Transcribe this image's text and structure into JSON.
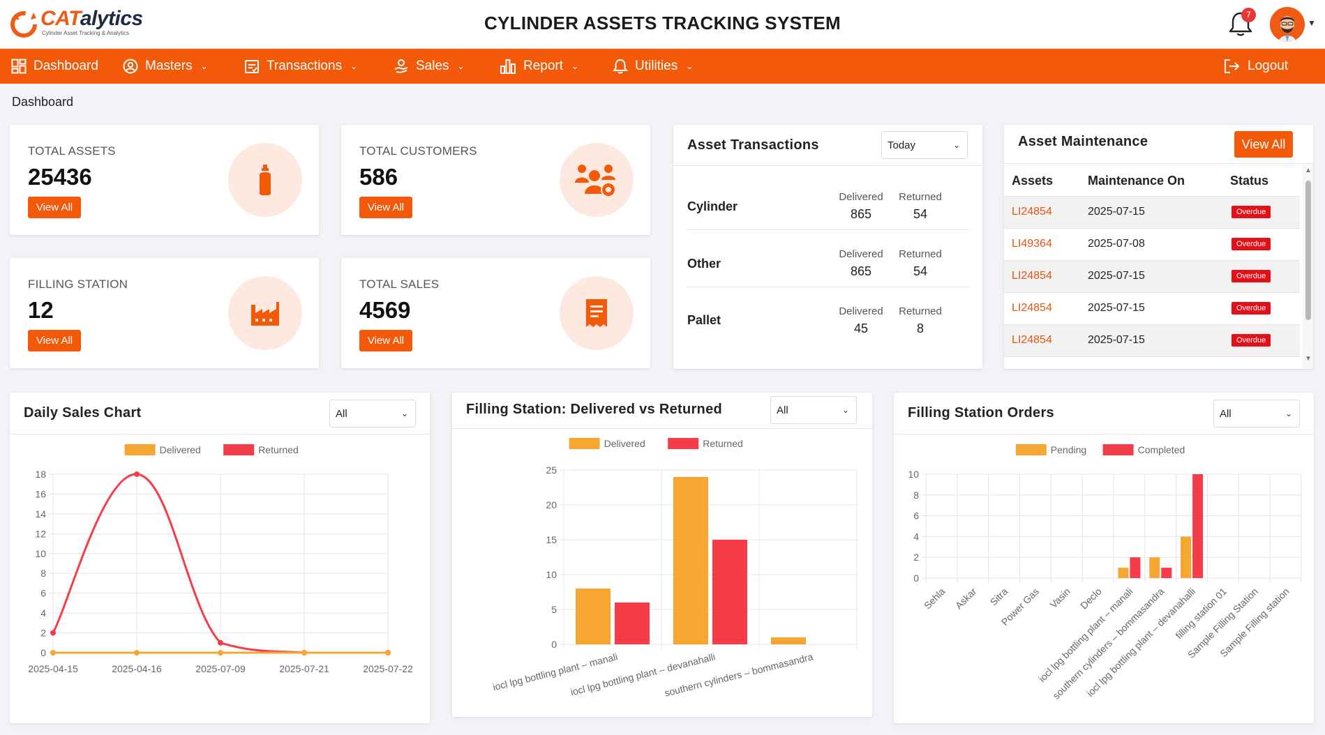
{
  "header": {
    "logo_word_a": "CAT",
    "logo_word_b": "alytics",
    "logo_tagline": "Cylinder Asset Tracking & Analytics",
    "title": "CYLINDER ASSETS TRACKING SYSTEM",
    "notification_count": "7"
  },
  "nav": {
    "items": [
      {
        "label": "Dashboard",
        "icon": "grid-icon"
      },
      {
        "label": "Masters",
        "icon": "user-circle-icon"
      },
      {
        "label": "Transactions",
        "icon": "clipboard-icon"
      },
      {
        "label": "Sales",
        "icon": "person-hand-icon"
      },
      {
        "label": "Report",
        "icon": "bar-chart-icon"
      },
      {
        "label": "Utilities",
        "icon": "bell-icon"
      }
    ],
    "logout": "Logout"
  },
  "breadcrumb": "Dashboard",
  "stats": [
    {
      "label": "TOTAL ASSETS",
      "value": "25436",
      "button": "View All",
      "icon": "cylinder-icon"
    },
    {
      "label": "TOTAL CUSTOMERS",
      "value": "586",
      "button": "View All",
      "icon": "users-gear-icon"
    },
    {
      "label": "FILLING STATION",
      "value": "12",
      "button": "View All",
      "icon": "factory-icon"
    },
    {
      "label": "TOTAL SALES",
      "value": "4569",
      "button": "View All",
      "icon": "receipt-icon"
    }
  ],
  "asset_transactions": {
    "title": "Asset Transactions",
    "filter": "Today",
    "delivered_label": "Delivered",
    "returned_label": "Returned",
    "rows": [
      {
        "name": "Cylinder",
        "delivered": "865",
        "returned": "54"
      },
      {
        "name": "Other",
        "delivered": "865",
        "returned": "54"
      },
      {
        "name": "Pallet",
        "delivered": "45",
        "returned": "8"
      }
    ]
  },
  "maintenance": {
    "title": "Asset Maintenance",
    "button": "View All",
    "columns": [
      "Assets",
      "Maintenance On",
      "Status"
    ],
    "rows": [
      {
        "asset": "LI24854",
        "date": "2025-07-15",
        "status": "Overdue"
      },
      {
        "asset": "LI49364",
        "date": "2025-07-08",
        "status": "Overdue"
      },
      {
        "asset": "LI24854",
        "date": "2025-07-15",
        "status": "Overdue"
      },
      {
        "asset": "LI24854",
        "date": "2025-07-15",
        "status": "Overdue"
      },
      {
        "asset": "LI24854",
        "date": "2025-07-15",
        "status": "Overdue"
      }
    ]
  },
  "colors": {
    "accent": "#f25a0a",
    "delivered": "#f6a732",
    "returned": "#f53c48",
    "overdue": "#e3101a"
  },
  "chart_data": [
    {
      "type": "line",
      "title": "Daily Sales Chart",
      "filter": "All",
      "categories": [
        "2025-04-15",
        "2025-04-16",
        "2025-07-09",
        "2025-07-21",
        "2025-07-22"
      ],
      "series": [
        {
          "name": "Delivered",
          "values": [
            0,
            0,
            0,
            0,
            0
          ]
        },
        {
          "name": "Returned",
          "values": [
            2,
            18,
            1,
            0,
            0
          ]
        }
      ],
      "ylim": [
        0,
        18
      ],
      "yticks": [
        0,
        2,
        4,
        6,
        8,
        10,
        12,
        14,
        16,
        18
      ],
      "legend": "top"
    },
    {
      "type": "bar",
      "title": "Filling Station: Delivered vs Returned",
      "filter": "All",
      "categories": [
        "iocl lpg bottling plant – manali",
        "iocl lpg bottling plant – devanahalli",
        "southern cylinders – bommasandra"
      ],
      "series": [
        {
          "name": "Delivered",
          "values": [
            8,
            24,
            1
          ]
        },
        {
          "name": "Returned",
          "values": [
            6,
            15,
            0
          ]
        }
      ],
      "ylim": [
        0,
        25
      ],
      "yticks": [
        0,
        5,
        10,
        15,
        20,
        25
      ],
      "legend": "top"
    },
    {
      "type": "bar",
      "title": "Filling Station Orders",
      "filter": "All",
      "categories": [
        "Sehla",
        "Askar",
        "Sitra",
        "Power Gas",
        "Vasin",
        "Declo",
        "iocl lpg bottling plant – manali",
        "southern cylinders – bommasandra",
        "iocl lpg bottling plant – devanahalli",
        "filling station 01",
        "Sample Filling Station",
        "Sample Filling station"
      ],
      "series": [
        {
          "name": "Pending",
          "values": [
            0,
            0,
            0,
            0,
            0,
            0,
            1,
            2,
            4,
            0,
            0,
            0
          ]
        },
        {
          "name": "Completed",
          "values": [
            0,
            0,
            0,
            0,
            0,
            0,
            2,
            1,
            10,
            0,
            0,
            0
          ]
        }
      ],
      "ylim": [
        0,
        10
      ],
      "yticks": [
        0,
        2,
        4,
        6,
        8,
        10
      ],
      "legend": "top"
    }
  ]
}
